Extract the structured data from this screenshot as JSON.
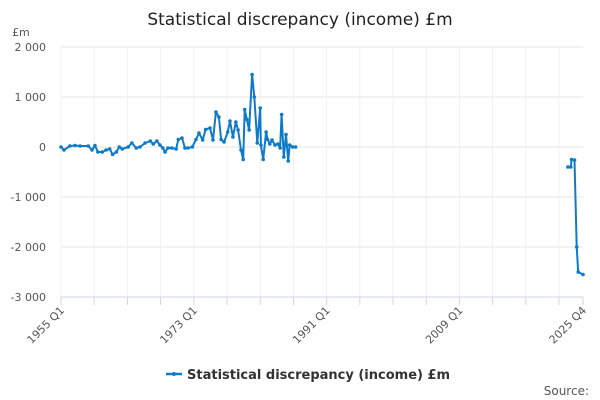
{
  "chart_data": {
    "type": "line",
    "title": "Statistical discrepancy (income) £m",
    "ylabel": "£m",
    "xlabel": "",
    "ylim": [
      -3000,
      2000
    ],
    "yticks": [
      2000,
      1000,
      0,
      -1000,
      -2000,
      -3000
    ],
    "ytick_labels": [
      "2 000",
      "1 000",
      "0",
      "-1 000",
      "-2 000",
      "-3 000"
    ],
    "xlim": [
      1955.0,
      2025.75
    ],
    "xticks": [
      1955.0,
      1973.0,
      1991.0,
      2009.0,
      2025.75
    ],
    "xtick_labels": [
      "1955 Q1",
      "1973 Q1",
      "1991 Q1",
      "2009 Q1",
      "2025 Q4"
    ],
    "grid": true,
    "legend_position": "bottom-center",
    "series": [
      {
        "name": "Statistical discrepancy (income) £m",
        "color": "#0f7ac8",
        "segments": [
          [
            [
              1955.0,
              0
            ],
            [
              1955.4,
              -60
            ],
            [
              1956.2,
              20
            ],
            [
              1956.9,
              30
            ],
            [
              1957.6,
              20
            ],
            [
              1958.7,
              20
            ],
            [
              1959.2,
              -60
            ],
            [
              1959.6,
              30
            ],
            [
              1960.0,
              -100
            ],
            [
              1960.6,
              -100
            ],
            [
              1961.1,
              -60
            ],
            [
              1961.6,
              -40
            ],
            [
              1962.0,
              -150
            ],
            [
              1962.5,
              -100
            ],
            [
              1962.9,
              0
            ],
            [
              1963.3,
              -40
            ],
            [
              1964.1,
              0
            ],
            [
              1964.6,
              80
            ],
            [
              1965.2,
              -20
            ],
            [
              1965.7,
              0
            ],
            [
              1966.4,
              80
            ],
            [
              1967.1,
              120
            ],
            [
              1967.5,
              60
            ],
            [
              1968.0,
              120
            ],
            [
              1968.4,
              40
            ],
            [
              1968.8,
              -20
            ],
            [
              1969.1,
              -100
            ],
            [
              1969.5,
              -20
            ],
            [
              1970.0,
              -20
            ],
            [
              1970.6,
              -40
            ],
            [
              1970.9,
              150
            ],
            [
              1971.4,
              180
            ],
            [
              1971.8,
              -20
            ],
            [
              1972.2,
              -20
            ],
            [
              1972.8,
              0
            ],
            [
              1973.3,
              150
            ],
            [
              1973.7,
              280
            ],
            [
              1974.2,
              140
            ],
            [
              1974.6,
              350
            ],
            [
              1975.2,
              380
            ],
            [
              1975.6,
              140
            ],
            [
              1976.0,
              700
            ],
            [
              1976.4,
              600
            ],
            [
              1976.7,
              150
            ],
            [
              1977.1,
              100
            ],
            [
              1977.6,
              300
            ],
            [
              1977.9,
              520
            ],
            [
              1978.3,
              200
            ],
            [
              1978.7,
              500
            ],
            [
              1979.0,
              340
            ],
            [
              1979.4,
              -60
            ],
            [
              1979.7,
              -250
            ],
            [
              1979.9,
              750
            ],
            [
              1980.2,
              550
            ],
            [
              1980.5,
              340
            ],
            [
              1980.9,
              1450
            ],
            [
              1981.2,
              1000
            ],
            [
              1981.6,
              80
            ],
            [
              1982.0,
              780
            ],
            [
              1982.1,
              40
            ],
            [
              1982.4,
              -250
            ],
            [
              1982.8,
              300
            ],
            [
              1983.0,
              150
            ],
            [
              1983.3,
              60
            ],
            [
              1983.6,
              140
            ],
            [
              1984.0,
              40
            ],
            [
              1984.4,
              60
            ],
            [
              1984.7,
              -20
            ],
            [
              1984.9,
              650
            ],
            [
              1985.2,
              -200
            ],
            [
              1985.5,
              250
            ],
            [
              1985.8,
              -280
            ],
            [
              1986.0,
              40
            ],
            [
              1986.4,
              0
            ],
            [
              1986.8,
              0
            ]
          ],
          [
            [
              2023.7,
              -400
            ],
            [
              2024.1,
              -400
            ],
            [
              2024.2,
              -250
            ],
            [
              2024.6,
              -260
            ],
            [
              2024.9,
              -2000
            ],
            [
              2025.1,
              -2500
            ],
            [
              2025.75,
              -2550
            ]
          ]
        ]
      }
    ],
    "source_label": "Source:"
  }
}
